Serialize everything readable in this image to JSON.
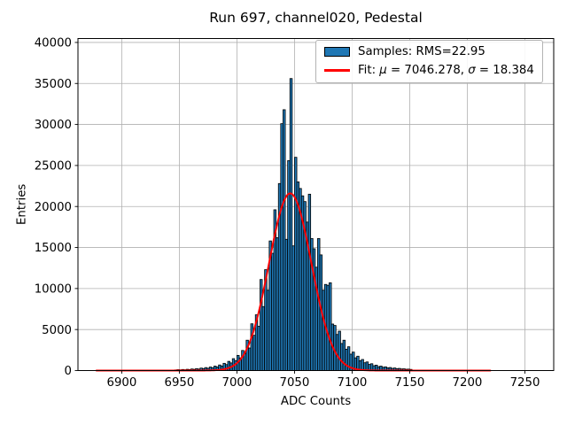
{
  "chart_data": {
    "type": "bar",
    "subtype": "histogram-with-gaussian-fit",
    "title": "Run 697, channel020, Pedestal",
    "xlabel": "ADC Counts",
    "ylabel": "Entries",
    "xlim": [
      6862,
      7275
    ],
    "ylim": [
      0,
      40480
    ],
    "xticks": [
      6900,
      6950,
      7000,
      7050,
      7100,
      7150,
      7200,
      7250
    ],
    "yticks": [
      0,
      5000,
      10000,
      15000,
      20000,
      25000,
      30000,
      35000,
      40000
    ],
    "grid": true,
    "legend_position": "upper-right",
    "histogram": {
      "bin_start": 6946,
      "bin_width": 2,
      "heights": [
        80,
        110,
        90,
        130,
        100,
        150,
        120,
        190,
        150,
        230,
        180,
        300,
        240,
        360,
        280,
        430,
        350,
        540,
        440,
        680,
        560,
        880,
        730,
        1120,
        930,
        1450,
        1200,
        1850,
        1550,
        2450,
        2050,
        3700,
        2750,
        5700,
        4300,
        6800,
        5400,
        11100,
        7800,
        12300,
        9800,
        15800,
        14300,
        19600,
        16200,
        22800,
        30100,
        31800,
        16000,
        25600,
        35600,
        15200,
        26000,
        23000,
        22200,
        21300,
        20600,
        18100,
        21500,
        16100,
        14850,
        12600,
        16100,
        14100,
        9800,
        10500,
        10400,
        10700,
        5670,
        5500,
        4400,
        4800,
        3300,
        3700,
        2600,
        2900,
        2000,
        2250,
        1550,
        1750,
        1200,
        1350,
        950,
        1050,
        750,
        830,
        590,
        660,
        470,
        540,
        400,
        450,
        330,
        370,
        270,
        310,
        230,
        260,
        190,
        210,
        160,
        175,
        140
      ]
    },
    "fit": {
      "mu": 7046.278,
      "sigma": 18.384,
      "amplitude": 21600,
      "x_start": 6878,
      "x_end": 7220
    },
    "legend": {
      "samples_label": "Samples: RMS=22.95",
      "fit_prefix": "Fit: ",
      "mu_symbol": "μ",
      "mu_value": " = 7046.278, ",
      "sigma_symbol": "σ",
      "sigma_value": " = 18.384"
    },
    "colors": {
      "bar_fill": "#1f77b4",
      "bar_edge": "#000000",
      "fit_line": "#ff0000",
      "grid": "#b0b0b0",
      "spine": "#000000",
      "background": "#ffffff"
    }
  }
}
